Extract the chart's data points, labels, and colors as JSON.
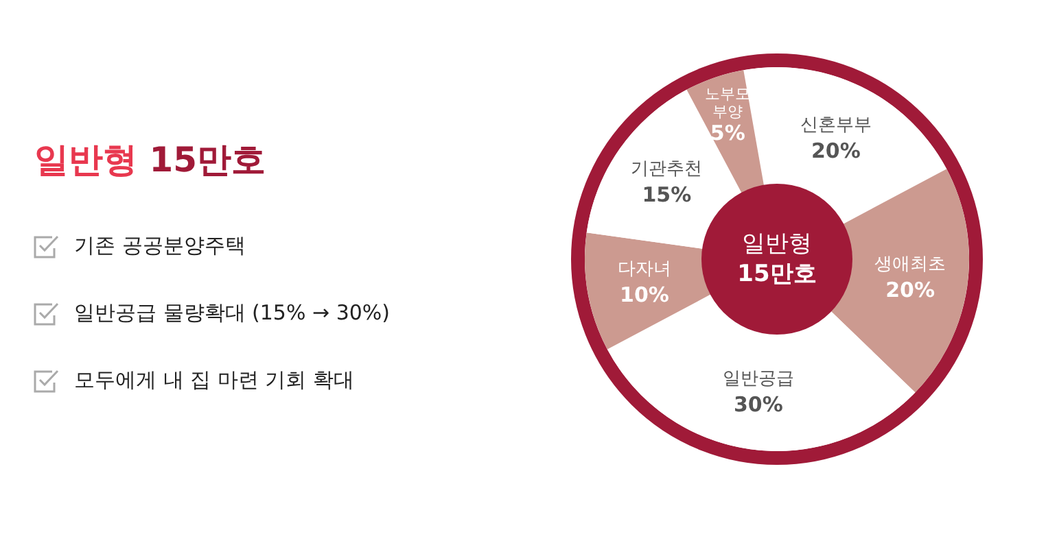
{
  "chart_data": {
    "type": "donut",
    "title": "일반형 15만호",
    "categories": [
      "신혼부부",
      "생애최초",
      "일반공급",
      "다자녀",
      "기관추천",
      "노부모 부양"
    ],
    "values": [
      20,
      20,
      30,
      10,
      15,
      5
    ],
    "colors": [
      "#ffffff",
      "#cc9a90",
      "#ffffff",
      "#cc9a90",
      "#ffffff",
      "#cc9a90"
    ],
    "value_labels": [
      "20%",
      "20%",
      "30%",
      "10%",
      "15%",
      "5%"
    ],
    "annotations": [
      "기존 공공분양주택",
      "일반공급 물량확대 (15% → 30%)",
      "모두에게 내 집 마련 기회 확대",
      "일반형 15만호"
    ]
  }
}
